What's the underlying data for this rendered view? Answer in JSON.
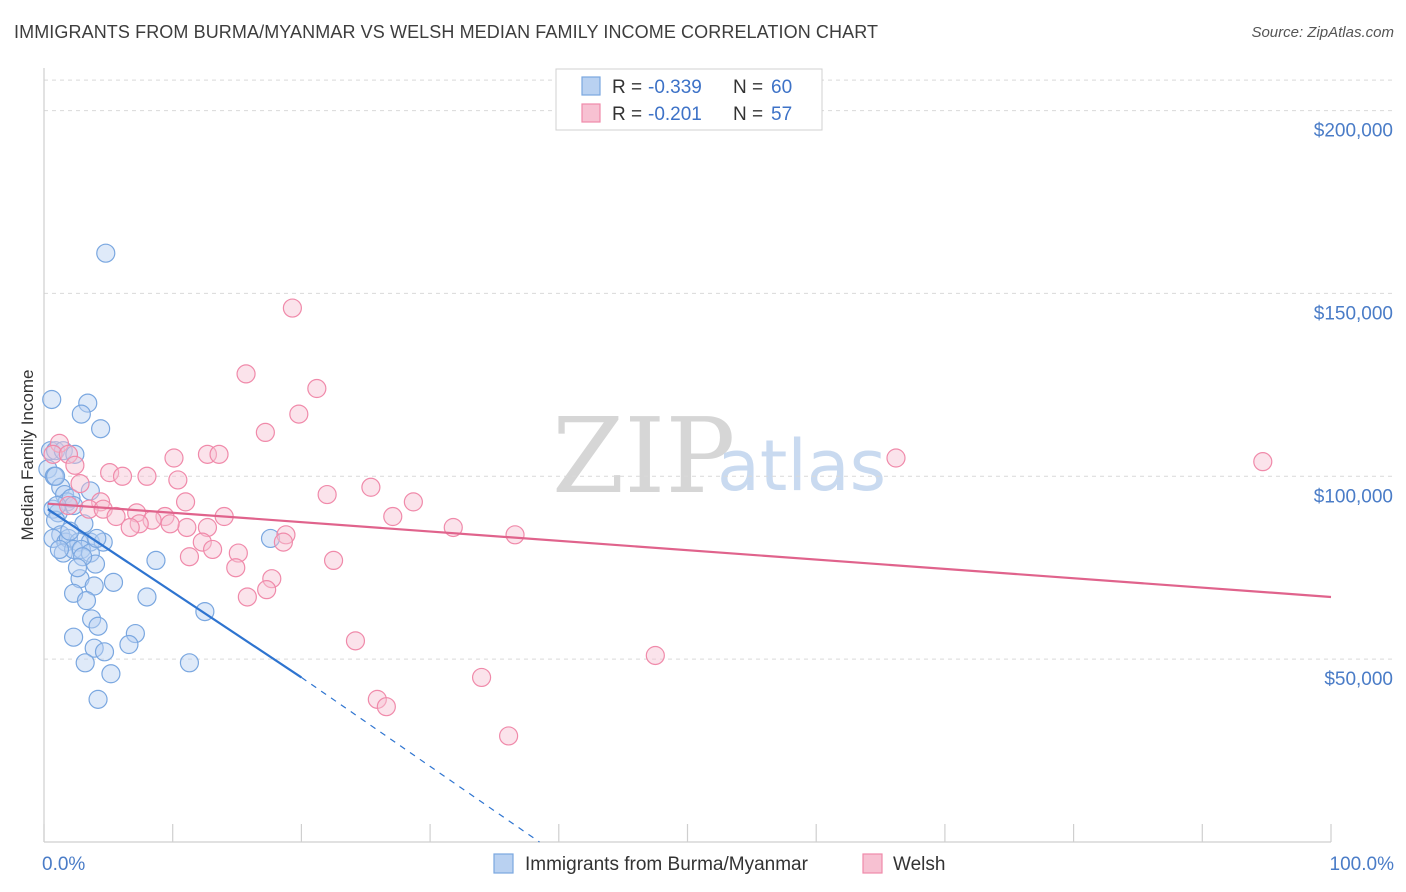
{
  "title": "IMMIGRANTS FROM BURMA/MYANMAR VS WELSH MEDIAN FAMILY INCOME CORRELATION CHART",
  "source": "Source: ZipAtlas.com",
  "watermark": {
    "zip": "ZIP",
    "atlas": "atlas"
  },
  "colors": {
    "blue": "#7aa7e0",
    "blue_fill": "#b9d1f1",
    "blue_line": "#2e74d0",
    "pink": "#f08aaa",
    "pink_fill": "#f7c1d2",
    "pink_line": "#e0638c",
    "grid": "#d9d9d9",
    "axis_text": "#4a7cc7"
  },
  "legend": {
    "r_label": "R =",
    "n_label": "N =",
    "rows": [
      {
        "series": "blue",
        "r": "-0.339",
        "n": "60"
      },
      {
        "series": "pink",
        "r": "-0.201",
        "n": "57"
      }
    ]
  },
  "chart_data": {
    "type": "scatter",
    "xlabel": "",
    "ylabel": "Median Family Income",
    "x_range": [
      0,
      100
    ],
    "y_range": [
      0,
      210000
    ],
    "x_tick_labels": {
      "min": "0.0%",
      "max": "100.0%"
    },
    "y_ticks": [
      {
        "value": 50000,
        "label": "$50,000"
      },
      {
        "value": 100000,
        "label": "$100,000"
      },
      {
        "value": 150000,
        "label": "$150,000"
      },
      {
        "value": 200000,
        "label": "$200,000"
      }
    ],
    "series": [
      {
        "name": "Immigrants from Burma/Myanmar",
        "color": "blue",
        "trend": {
          "x0": 0.3,
          "y0": 91000,
          "x1": 20,
          "y1": 45000,
          "dash_to_x": 38.5,
          "dash_to_y": 0
        },
        "points": [
          [
            4.8,
            161000
          ],
          [
            0.6,
            121000
          ],
          [
            3.4,
            120000
          ],
          [
            2.9,
            117000
          ],
          [
            4.4,
            113000
          ],
          [
            0.5,
            107000
          ],
          [
            0.9,
            107000
          ],
          [
            1.5,
            107000
          ],
          [
            2.4,
            106000
          ],
          [
            0.3,
            102000
          ],
          [
            0.8,
            100000
          ],
          [
            1.3,
            97000
          ],
          [
            3.6,
            96000
          ],
          [
            1.6,
            95000
          ],
          [
            1.8,
            93000
          ],
          [
            2.1,
            94000
          ],
          [
            2.3,
            92000
          ],
          [
            0.7,
            91000
          ],
          [
            1.1,
            90000
          ],
          [
            0.9,
            88000
          ],
          [
            3.1,
            87000
          ],
          [
            1.3,
            84000
          ],
          [
            0.7,
            83000
          ],
          [
            1.7,
            82000
          ],
          [
            1.9,
            83000
          ],
          [
            2.7,
            82000
          ],
          [
            3.6,
            82000
          ],
          [
            4.6,
            82000
          ],
          [
            1.5,
            79000
          ],
          [
            2.3,
            80000
          ],
          [
            2.9,
            80000
          ],
          [
            3.6,
            79000
          ],
          [
            17.6,
            83000
          ],
          [
            8.7,
            77000
          ],
          [
            4.0,
            76000
          ],
          [
            2.8,
            72000
          ],
          [
            5.4,
            71000
          ],
          [
            3.9,
            70000
          ],
          [
            2.3,
            68000
          ],
          [
            8.0,
            67000
          ],
          [
            3.3,
            66000
          ],
          [
            12.5,
            63000
          ],
          [
            3.7,
            61000
          ],
          [
            4.2,
            59000
          ],
          [
            7.1,
            57000
          ],
          [
            2.3,
            56000
          ],
          [
            6.6,
            54000
          ],
          [
            3.9,
            53000
          ],
          [
            4.7,
            52000
          ],
          [
            11.3,
            49000
          ],
          [
            3.2,
            49000
          ],
          [
            5.2,
            46000
          ],
          [
            4.2,
            39000
          ],
          [
            0.9,
            100000
          ],
          [
            1.2,
            80000
          ],
          [
            2.0,
            85000
          ],
          [
            3.0,
            78000
          ],
          [
            1.0,
            92000
          ],
          [
            2.6,
            75000
          ],
          [
            4.1,
            83000
          ]
        ]
      },
      {
        "name": "Welsh",
        "color": "pink",
        "trend": {
          "x0": 0.3,
          "y0": 92500,
          "x1": 100,
          "y1": 67000
        },
        "points": [
          [
            19.3,
            146000
          ],
          [
            15.7,
            128000
          ],
          [
            21.2,
            124000
          ],
          [
            19.8,
            117000
          ],
          [
            17.2,
            112000
          ],
          [
            1.2,
            109000
          ],
          [
            0.7,
            106000
          ],
          [
            1.9,
            106000
          ],
          [
            12.7,
            106000
          ],
          [
            13.6,
            106000
          ],
          [
            10.1,
            105000
          ],
          [
            2.4,
            103000
          ],
          [
            5.1,
            101000
          ],
          [
            6.1,
            100000
          ],
          [
            8.0,
            100000
          ],
          [
            10.4,
            99000
          ],
          [
            2.8,
            98000
          ],
          [
            25.4,
            97000
          ],
          [
            22.0,
            95000
          ],
          [
            11.0,
            93000
          ],
          [
            4.4,
            93000
          ],
          [
            28.7,
            93000
          ],
          [
            1.9,
            92000
          ],
          [
            3.5,
            91000
          ],
          [
            4.6,
            91000
          ],
          [
            7.2,
            90000
          ],
          [
            5.6,
            89000
          ],
          [
            9.4,
            89000
          ],
          [
            14.0,
            89000
          ],
          [
            27.1,
            89000
          ],
          [
            8.4,
            88000
          ],
          [
            7.4,
            87000
          ],
          [
            6.7,
            86000
          ],
          [
            11.1,
            86000
          ],
          [
            12.7,
            86000
          ],
          [
            31.8,
            86000
          ],
          [
            18.8,
            84000
          ],
          [
            36.6,
            84000
          ],
          [
            12.3,
            82000
          ],
          [
            18.6,
            82000
          ],
          [
            13.1,
            80000
          ],
          [
            15.1,
            79000
          ],
          [
            11.3,
            78000
          ],
          [
            22.5,
            77000
          ],
          [
            14.9,
            75000
          ],
          [
            17.7,
            72000
          ],
          [
            17.3,
            69000
          ],
          [
            15.8,
            67000
          ],
          [
            24.2,
            55000
          ],
          [
            47.5,
            51000
          ],
          [
            34.0,
            45000
          ],
          [
            25.9,
            39000
          ],
          [
            26.6,
            37000
          ],
          [
            36.1,
            29000
          ],
          [
            66.2,
            105000
          ],
          [
            94.7,
            104000
          ],
          [
            9.8,
            87000
          ]
        ]
      }
    ]
  },
  "bottom_legend": [
    {
      "series": "blue",
      "label": "Immigrants from Burma/Myanmar"
    },
    {
      "series": "pink",
      "label": "Welsh"
    }
  ]
}
